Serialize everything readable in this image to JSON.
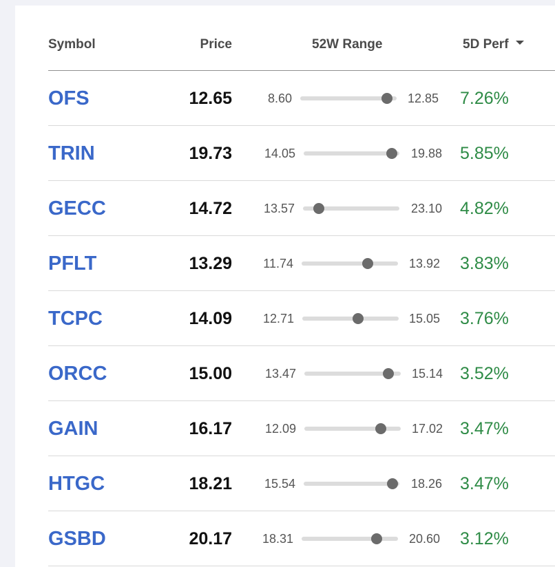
{
  "table": {
    "headers": {
      "symbol": "Symbol",
      "price": "Price",
      "range": "52W Range",
      "perf": "5D Perf"
    },
    "sort": {
      "column": "5D Perf",
      "direction": "descending"
    },
    "colors": {
      "symbol": "#3a68c9",
      "perf_positive": "#2e8b46"
    },
    "rows": [
      {
        "symbol": "OFS",
        "price": "12.65",
        "low": "8.60",
        "high": "12.85",
        "perf": "7.26%"
      },
      {
        "symbol": "TRIN",
        "price": "19.73",
        "low": "14.05",
        "high": "19.88",
        "perf": "5.85%"
      },
      {
        "symbol": "GECC",
        "price": "14.72",
        "low": "13.57",
        "high": "23.10",
        "perf": "4.82%"
      },
      {
        "symbol": "PFLT",
        "price": "13.29",
        "low": "11.74",
        "high": "13.92",
        "perf": "3.83%"
      },
      {
        "symbol": "TCPC",
        "price": "14.09",
        "low": "12.71",
        "high": "15.05",
        "perf": "3.76%"
      },
      {
        "symbol": "ORCC",
        "price": "15.00",
        "low": "13.47",
        "high": "15.14",
        "perf": "3.52%"
      },
      {
        "symbol": "GAIN",
        "price": "16.17",
        "low": "12.09",
        "high": "17.02",
        "perf": "3.47%"
      },
      {
        "symbol": "HTGC",
        "price": "18.21",
        "low": "15.54",
        "high": "18.26",
        "perf": "3.47%"
      },
      {
        "symbol": "GSBD",
        "price": "20.17",
        "low": "18.31",
        "high": "20.60",
        "perf": "3.12%"
      }
    ]
  }
}
